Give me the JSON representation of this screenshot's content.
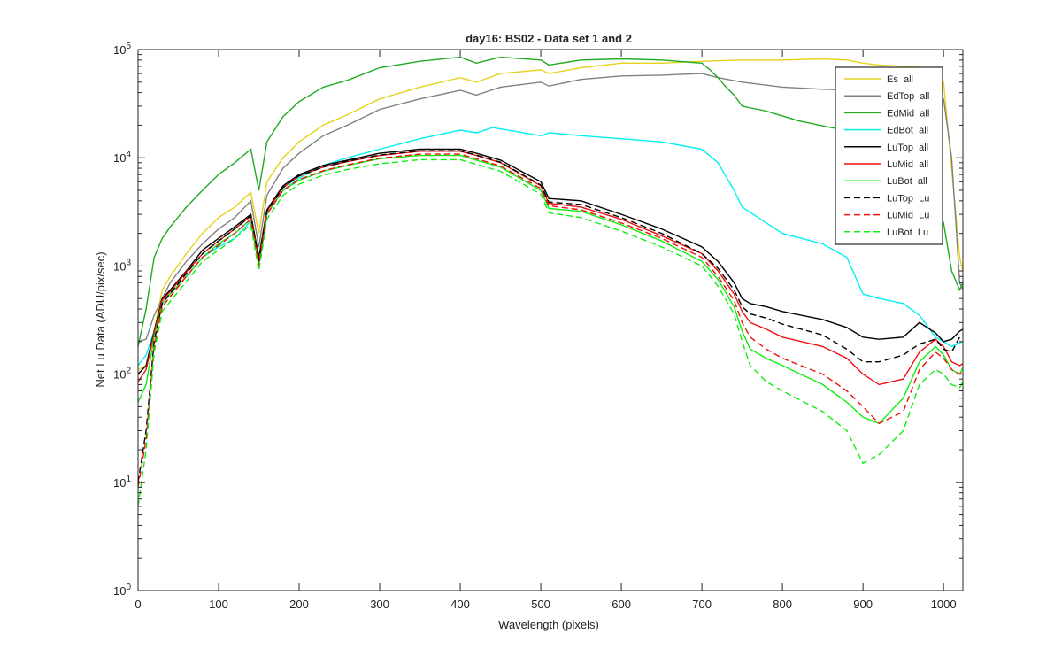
{
  "chart_data": {
    "type": "line",
    "title": "day16: BS02 - Data set 1 and 2",
    "xlabel": "Wavelength (pixels)",
    "ylabel": "Net Lu Data (ADU/pix/sec)",
    "yscale": "log",
    "xlim": [
      0,
      1024
    ],
    "ylim": [
      1,
      100000
    ],
    "xticks": [
      0,
      100,
      200,
      300,
      400,
      500,
      600,
      700,
      800,
      900,
      1000
    ],
    "yticks": [
      {
        "base": "10",
        "exp": "0",
        "value": 1
      },
      {
        "base": "10",
        "exp": "1",
        "value": 10
      },
      {
        "base": "10",
        "exp": "2",
        "value": 100
      },
      {
        "base": "10",
        "exp": "3",
        "value": 1000
      },
      {
        "base": "10",
        "exp": "4",
        "value": 10000
      },
      {
        "base": "10",
        "exp": "5",
        "value": 100000
      }
    ],
    "legend_position": "top-right",
    "series": [
      {
        "name": "Es  all",
        "color": "#e6d21c",
        "dash": "solid",
        "x": [
          0,
          10,
          20,
          30,
          40,
          60,
          80,
          100,
          120,
          140,
          150,
          160,
          180,
          200,
          230,
          260,
          300,
          350,
          400,
          420,
          450,
          500,
          510,
          550,
          600,
          650,
          700,
          750,
          800,
          850,
          880,
          900,
          920,
          950,
          980,
          1000,
          1010,
          1020,
          1024
        ],
        "y": [
          110,
          120,
          250,
          600,
          800,
          1300,
          2000,
          2800,
          3500,
          4800,
          2000,
          6000,
          10000,
          14000,
          20000,
          25000,
          35000,
          45000,
          55000,
          50000,
          60000,
          65000,
          60000,
          68000,
          75000,
          75000,
          78000,
          80000,
          80000,
          82000,
          80000,
          75000,
          72000,
          70000,
          68000,
          50000,
          8000,
          1200,
          900
        ]
      },
      {
        "name": "EdTop  all",
        "color": "#808080",
        "dash": "solid",
        "x": [
          0,
          10,
          20,
          30,
          40,
          60,
          80,
          100,
          120,
          140,
          150,
          160,
          180,
          200,
          230,
          260,
          300,
          350,
          400,
          420,
          450,
          500,
          510,
          550,
          600,
          650,
          700,
          720,
          750,
          800,
          850,
          900,
          950,
          980,
          1000,
          1010,
          1020,
          1024
        ],
        "y": [
          200,
          210,
          350,
          500,
          700,
          1100,
          1600,
          2200,
          2800,
          4000,
          1500,
          4500,
          8000,
          11000,
          16000,
          20000,
          28000,
          35000,
          42000,
          38000,
          45000,
          50000,
          46000,
          53000,
          57000,
          58000,
          60000,
          55000,
          50000,
          45000,
          43000,
          42000,
          42000,
          40000,
          35000,
          10000,
          700,
          600
        ]
      },
      {
        "name": "EdMid  all",
        "color": "#1faa1f",
        "dash": "solid",
        "x": [
          0,
          10,
          20,
          30,
          40,
          60,
          80,
          100,
          120,
          140,
          150,
          160,
          180,
          200,
          230,
          260,
          300,
          350,
          400,
          420,
          450,
          500,
          510,
          550,
          600,
          650,
          700,
          710,
          720,
          730,
          740,
          750,
          780,
          820,
          860,
          900,
          930,
          960,
          1000,
          1010,
          1020,
          1024
        ],
        "y": [
          180,
          400,
          1200,
          1800,
          2300,
          3500,
          5000,
          7000,
          9000,
          12000,
          5000,
          14000,
          24000,
          33000,
          45000,
          52000,
          68000,
          78000,
          85000,
          75000,
          85000,
          80000,
          72000,
          80000,
          82000,
          80000,
          75000,
          65000,
          55000,
          45000,
          38000,
          30000,
          27000,
          22000,
          19000,
          17000,
          15000,
          12000,
          2500,
          900,
          600,
          700
        ]
      },
      {
        "name": "EdBot  all",
        "color": "#00f0f0",
        "dash": "solid",
        "x": [
          0,
          10,
          20,
          30,
          40,
          60,
          80,
          100,
          120,
          140,
          150,
          160,
          180,
          200,
          230,
          260,
          300,
          350,
          400,
          420,
          440,
          500,
          510,
          550,
          600,
          650,
          700,
          720,
          740,
          750,
          780,
          800,
          850,
          880,
          900,
          920,
          950,
          970,
          990,
          1010,
          1024
        ],
        "y": [
          120,
          150,
          250,
          450,
          550,
          800,
          1200,
          1500,
          1800,
          2600,
          1000,
          3000,
          5000,
          6500,
          8500,
          10000,
          12000,
          15000,
          18000,
          17000,
          19000,
          16000,
          17000,
          16000,
          15000,
          14000,
          12000,
          9000,
          5000,
          3500,
          2500,
          2000,
          1600,
          1200,
          550,
          500,
          450,
          350,
          220,
          180,
          200
        ]
      },
      {
        "name": "LuTop  all",
        "color": "#000000",
        "dash": "solid",
        "x": [
          0,
          10,
          20,
          30,
          40,
          60,
          80,
          100,
          120,
          140,
          150,
          160,
          180,
          200,
          230,
          260,
          300,
          350,
          400,
          420,
          450,
          500,
          510,
          550,
          600,
          650,
          700,
          720,
          740,
          750,
          760,
          780,
          800,
          850,
          880,
          900,
          920,
          950,
          970,
          990,
          1000,
          1010,
          1020,
          1024
        ],
        "y": [
          100,
          120,
          250,
          500,
          600,
          900,
          1400,
          1800,
          2300,
          3000,
          1200,
          3300,
          5500,
          7000,
          8500,
          9500,
          11000,
          12000,
          12000,
          11000,
          9500,
          6000,
          4200,
          4000,
          3000,
          2200,
          1500,
          1100,
          700,
          500,
          450,
          420,
          380,
          320,
          270,
          220,
          210,
          220,
          300,
          240,
          200,
          210,
          250,
          260
        ]
      },
      {
        "name": "LuMid  all",
        "color": "#ee1111",
        "dash": "solid",
        "x": [
          0,
          10,
          20,
          30,
          40,
          60,
          80,
          100,
          120,
          140,
          150,
          160,
          180,
          200,
          230,
          260,
          300,
          350,
          400,
          420,
          450,
          500,
          510,
          550,
          600,
          650,
          700,
          720,
          740,
          750,
          760,
          780,
          800,
          850,
          880,
          900,
          920,
          950,
          970,
          990,
          1000,
          1010,
          1020,
          1024
        ],
        "y": [
          85,
          110,
          240,
          480,
          580,
          880,
          1300,
          1700,
          2200,
          2900,
          1100,
          3200,
          5300,
          6800,
          8200,
          9200,
          10500,
          11500,
          11500,
          10500,
          9000,
          5500,
          3800,
          3500,
          2700,
          1900,
          1300,
          900,
          550,
          380,
          300,
          260,
          220,
          180,
          140,
          100,
          80,
          90,
          160,
          210,
          180,
          130,
          120,
          125
        ]
      },
      {
        "name": "LuBot  all",
        "color": "#11ee11",
        "dash": "solid",
        "x": [
          0,
          10,
          20,
          30,
          40,
          60,
          80,
          100,
          120,
          140,
          150,
          160,
          180,
          200,
          230,
          260,
          300,
          350,
          400,
          420,
          450,
          500,
          510,
          550,
          600,
          650,
          700,
          720,
          740,
          750,
          760,
          780,
          800,
          850,
          880,
          900,
          920,
          950,
          970,
          990,
          1000,
          1010,
          1020,
          1024
        ],
        "y": [
          55,
          80,
          220,
          450,
          550,
          800,
          1200,
          1600,
          2000,
          2700,
          1000,
          3000,
          5000,
          6200,
          7500,
          8500,
          9800,
          10500,
          10500,
          9500,
          8200,
          5000,
          3400,
          3200,
          2400,
          1700,
          1100,
          750,
          420,
          250,
          170,
          140,
          120,
          80,
          55,
          40,
          35,
          60,
          130,
          180,
          150,
          110,
          100,
          115
        ]
      },
      {
        "name": "LuTop  Lu",
        "color": "#000000",
        "dash": "dashed",
        "x": [
          0,
          10,
          20,
          30,
          40,
          60,
          80,
          100,
          120,
          140,
          150,
          160,
          180,
          200,
          230,
          260,
          300,
          350,
          400,
          420,
          450,
          500,
          510,
          550,
          600,
          650,
          700,
          720,
          740,
          750,
          760,
          780,
          800,
          850,
          880,
          900,
          920,
          950,
          970,
          990,
          1000,
          1010,
          1020,
          1024
        ],
        "y": [
          10,
          30,
          200,
          450,
          560,
          850,
          1300,
          1700,
          2200,
          2900,
          1100,
          3200,
          5300,
          6800,
          8200,
          9300,
          10600,
          11600,
          11600,
          10600,
          9100,
          5600,
          3900,
          3700,
          2800,
          2000,
          1300,
          950,
          600,
          420,
          360,
          330,
          290,
          230,
          170,
          130,
          130,
          150,
          190,
          210,
          170,
          160,
          220,
          230
        ]
      },
      {
        "name": "LuMid  Lu",
        "color": "#ee1111",
        "dash": "dashed",
        "x": [
          0,
          10,
          20,
          30,
          40,
          60,
          80,
          100,
          120,
          140,
          150,
          160,
          180,
          200,
          230,
          260,
          300,
          350,
          400,
          420,
          450,
          500,
          510,
          550,
          600,
          650,
          700,
          720,
          740,
          750,
          760,
          780,
          800,
          850,
          880,
          900,
          920,
          950,
          970,
          990,
          1000,
          1010,
          1020,
          1024
        ],
        "y": [
          9,
          25,
          180,
          420,
          520,
          800,
          1200,
          1550,
          2000,
          2700,
          1000,
          3000,
          5000,
          6300,
          7600,
          8600,
          9900,
          10800,
          10800,
          9800,
          8400,
          5200,
          3600,
          3300,
          2500,
          1800,
          1200,
          800,
          480,
          300,
          220,
          170,
          140,
          100,
          70,
          50,
          35,
          45,
          110,
          160,
          140,
          110,
          100,
          105
        ]
      },
      {
        "name": "LuBot  Lu",
        "color": "#11ee11",
        "dash": "dashed",
        "x": [
          0,
          10,
          20,
          30,
          40,
          60,
          80,
          100,
          120,
          140,
          150,
          160,
          180,
          200,
          230,
          260,
          300,
          350,
          400,
          420,
          450,
          500,
          510,
          550,
          600,
          650,
          700,
          720,
          740,
          750,
          760,
          780,
          800,
          850,
          880,
          900,
          920,
          950,
          970,
          990,
          1000,
          1010,
          1020,
          1024
        ],
        "y": [
          6,
          20,
          160,
          380,
          470,
          720,
          1100,
          1400,
          1800,
          2400,
          900,
          2700,
          4500,
          5700,
          6900,
          7800,
          8800,
          9600,
          9600,
          8700,
          7500,
          4600,
          3100,
          2800,
          2100,
          1500,
          1000,
          650,
          360,
          200,
          120,
          85,
          70,
          45,
          30,
          15,
          18,
          30,
          80,
          110,
          100,
          80,
          75,
          85
        ]
      }
    ]
  }
}
